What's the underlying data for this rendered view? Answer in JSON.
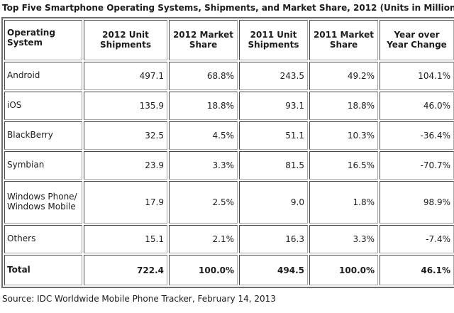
{
  "title": "Top Five Smartphone Operating Systems, Shipments, and Market Share, 2012 (Units in Millions)",
  "source_note": "Source: IDC Worldwide Mobile Phone Tracker, February 14, 2013",
  "table": {
    "header": {
      "os": "Operating System",
      "cols": [
        "2012 Unit\nShipments",
        "2012 Market\nShare",
        "2011 Unit\nShipments",
        "2011 Market\nShare",
        "Year over\nYear Change"
      ]
    },
    "rows": [
      {
        "os": "Android",
        "cells": [
          "497.1",
          "68.8%",
          "243.5",
          "49.2%",
          "104.1%"
        ]
      },
      {
        "os": "iOS",
        "cells": [
          "135.9",
          "18.8%",
          "93.1",
          "18.8%",
          "46.0%"
        ]
      },
      {
        "os": "BlackBerry",
        "cells": [
          "32.5",
          "4.5%",
          "51.1",
          "10.3%",
          "-36.4%"
        ]
      },
      {
        "os": "Symbian",
        "cells": [
          "23.9",
          "3.3%",
          "81.5",
          "16.5%",
          "-70.7%"
        ]
      },
      {
        "os": "Windows Phone/\nWindows Mobile",
        "cells": [
          "17.9",
          "2.5%",
          "9.0",
          "1.8%",
          "98.9%"
        ],
        "tall": true
      },
      {
        "os": "Others",
        "cells": [
          "15.1",
          "2.1%",
          "16.3",
          "3.3%",
          "-7.4%"
        ]
      },
      {
        "os": "Total",
        "cells": [
          "722.4",
          "100.0%",
          "494.5",
          "100.0%",
          "46.1%"
        ],
        "total": true
      }
    ]
  },
  "colors": {
    "background": "#ffffff",
    "text": "#1c1c1c",
    "outer_border": "#6e6e6e",
    "cell_border_dark": "#474747",
    "cell_border_light": "#a6a6a6"
  },
  "chart_data": {
    "type": "table",
    "title": "Top Five Smartphone Operating Systems, Shipments, and Market Share, 2012 (Units in Millions)",
    "columns": [
      "Operating System",
      "2012 Unit Shipments",
      "2012 Market Share",
      "2011 Unit Shipments",
      "2011 Market Share",
      "Year over Year Change"
    ],
    "rows": [
      {
        "operating_system": "Android",
        "shipments_2012": 497.1,
        "market_share_2012_pct": 68.8,
        "shipments_2011": 243.5,
        "market_share_2011_pct": 49.2,
        "yoy_change_pct": 104.1
      },
      {
        "operating_system": "iOS",
        "shipments_2012": 135.9,
        "market_share_2012_pct": 18.8,
        "shipments_2011": 93.1,
        "market_share_2011_pct": 18.8,
        "yoy_change_pct": 46.0
      },
      {
        "operating_system": "BlackBerry",
        "shipments_2012": 32.5,
        "market_share_2012_pct": 4.5,
        "shipments_2011": 51.1,
        "market_share_2011_pct": 10.3,
        "yoy_change_pct": -36.4
      },
      {
        "operating_system": "Symbian",
        "shipments_2012": 23.9,
        "market_share_2012_pct": 3.3,
        "shipments_2011": 81.5,
        "market_share_2011_pct": 16.5,
        "yoy_change_pct": -70.7
      },
      {
        "operating_system": "Windows Phone/Windows Mobile",
        "shipments_2012": 17.9,
        "market_share_2012_pct": 2.5,
        "shipments_2011": 9.0,
        "market_share_2011_pct": 1.8,
        "yoy_change_pct": 98.9
      },
      {
        "operating_system": "Others",
        "shipments_2012": 15.1,
        "market_share_2012_pct": 2.1,
        "shipments_2011": 16.3,
        "market_share_2011_pct": 3.3,
        "yoy_change_pct": -7.4
      },
      {
        "operating_system": "Total",
        "shipments_2012": 722.4,
        "market_share_2012_pct": 100.0,
        "shipments_2011": 494.5,
        "market_share_2011_pct": 100.0,
        "yoy_change_pct": 46.1
      }
    ],
    "units": "Millions",
    "source": "IDC Worldwide Mobile Phone Tracker, February 14, 2013"
  }
}
